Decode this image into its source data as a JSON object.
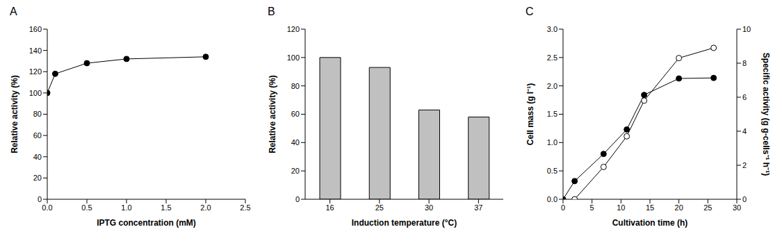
{
  "chart_data": [
    {
      "type": "line",
      "title": "A",
      "x_label": "IPTG concentration (mM)",
      "y_label": "Relative activity (%)",
      "x": [
        0,
        0.1,
        0.5,
        1.0,
        2.0
      ],
      "series": [
        {
          "color": "#000000",
          "marker": "circle",
          "values": [
            100,
            118,
            128,
            132,
            134
          ]
        }
      ],
      "xlim": [
        0,
        2.5
      ],
      "xticks": [
        {
          "value": 0,
          "label": "0.0"
        },
        {
          "value": 0.5,
          "label": "0.5"
        },
        {
          "value": 1,
          "label": "1.0"
        },
        {
          "value": 1.5,
          "label": "1.5"
        },
        {
          "value": 2,
          "label": "2.0"
        },
        {
          "value": 2.5,
          "label": "2.5"
        }
      ],
      "ylim": [
        0,
        160
      ],
      "yticks": [
        0,
        20,
        40,
        60,
        80,
        100,
        120,
        140,
        160
      ]
    },
    {
      "type": "bar",
      "title": "B",
      "x_label": "Induction temperature (°C)",
      "y_label": "Relative activity (%)",
      "categories": [
        "16",
        "25",
        "30",
        "37"
      ],
      "values": [
        100,
        93,
        63,
        58
      ],
      "color": "#c0c0c0",
      "ylim": [
        0,
        120
      ],
      "yticks": [
        0,
        20,
        40,
        60,
        80,
        100,
        120
      ]
    },
    {
      "type": "line",
      "title": "C",
      "x_label": "Cultivation time (h)",
      "y_label": "Cell mass (g l⁻¹)",
      "y2_label": "Specific activity (g g-cells⁻¹ h⁻¹)",
      "x": [
        0,
        2,
        7,
        11,
        14,
        20,
        26
      ],
      "series": [
        {
          "color": "#000000",
          "marker": "circle",
          "values": [
            0,
            0.32,
            0.8,
            1.23,
            1.84,
            2.13,
            2.14
          ]
        },
        {
          "color": "#000000",
          "marker": "open_circle",
          "axis": "y2",
          "values": [
            null,
            0,
            1.9,
            3.7,
            5.8,
            8.3,
            8.9
          ]
        }
      ],
      "xlim": [
        0,
        30
      ],
      "xticks": [
        0,
        5,
        10,
        15,
        20,
        25,
        30
      ],
      "ylim": [
        0,
        3
      ],
      "yticks": [
        {
          "value": 0,
          "label": "0.0"
        },
        {
          "value": 0.5,
          "label": "0.5"
        },
        {
          "value": 1,
          "label": "1.0"
        },
        {
          "value": 1.5,
          "label": "1.5"
        },
        {
          "value": 2,
          "label": "2.0"
        },
        {
          "value": 2.5,
          "label": "2.5"
        },
        {
          "value": 3,
          "label": "3.0"
        }
      ],
      "y2lim": [
        0,
        10
      ],
      "y2ticks": [
        0,
        2,
        4,
        6,
        8,
        10
      ]
    }
  ]
}
